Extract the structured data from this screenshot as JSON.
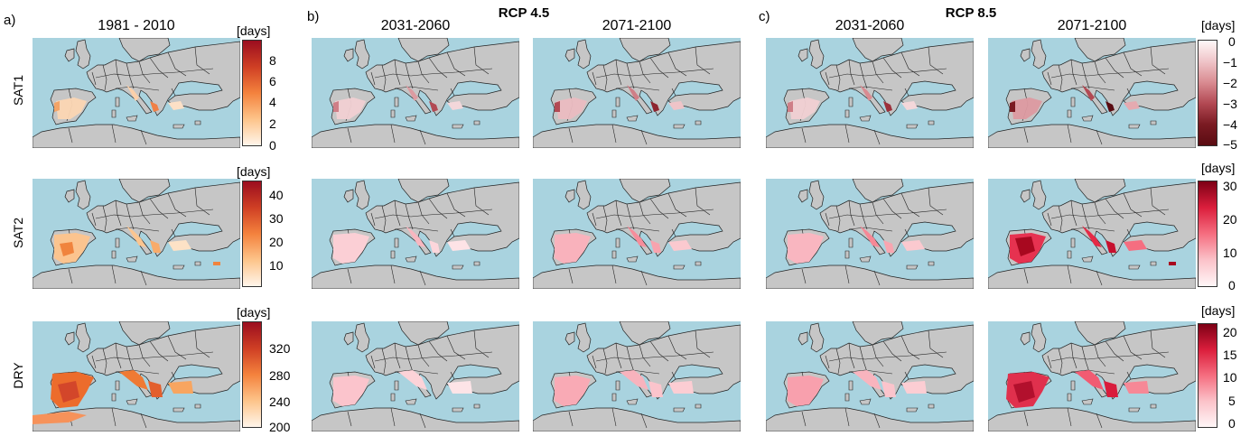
{
  "panels": {
    "a": {
      "letter": "a)",
      "period": "1981 - 2010"
    },
    "b": {
      "letter": "b)",
      "scenario": "RCP 4.5",
      "periods": [
        "2031-2060",
        "2071-2100"
      ]
    },
    "c": {
      "letter": "c)",
      "scenario": "RCP 8.5",
      "periods": [
        "2031-2060",
        "2071-2100"
      ]
    }
  },
  "rows": [
    "SAT1",
    "SAT2",
    "DRY"
  ],
  "colorbars": {
    "baseline_sat1": {
      "unit": "[days]",
      "ticks": [
        "8",
        "6",
        "4",
        "2",
        "0"
      ],
      "colors": [
        "#fff5eb",
        "#fdc48a",
        "#f4823d",
        "#cf3f24",
        "#9b0d1f"
      ]
    },
    "baseline_sat2": {
      "unit": "[days]",
      "ticks": [
        "40",
        "30",
        "20",
        "10"
      ],
      "colors": [
        "#fff5eb",
        "#fdc48a",
        "#f4823d",
        "#cf3f24",
        "#9b0d1f"
      ]
    },
    "baseline_dry": {
      "unit": "[days]",
      "ticks": [
        "320",
        "280",
        "240",
        "200"
      ],
      "colors": [
        "#fff5eb",
        "#fdc48a",
        "#f4823d",
        "#cf3f24",
        "#9b0d1f"
      ]
    },
    "change_sat1": {
      "unit": "[days]",
      "ticks": [
        "0",
        "−1",
        "−2",
        "−3",
        "−4",
        "−5"
      ],
      "colors": [
        "#fff8f8",
        "#efc4c8",
        "#d98b91",
        "#b24953",
        "#7a1a22",
        "#5a0c12"
      ]
    },
    "change_sat2": {
      "unit": "[days]",
      "ticks": [
        "30",
        "20",
        "10",
        "0"
      ],
      "colors": [
        "#fff6f7",
        "#fbc2c9",
        "#f56e80",
        "#db1e3c",
        "#7d0015"
      ]
    },
    "change_dry": {
      "unit": "[days]",
      "ticks": [
        "20",
        "15",
        "10",
        "5",
        "0"
      ],
      "colors": [
        "#fff6f7",
        "#fbc2c9",
        "#f56e80",
        "#db1e3c",
        "#7d0015"
      ]
    }
  },
  "colors": {
    "sea": "#a9d3df",
    "land": "#c6c6c6",
    "border": "#222222"
  }
}
